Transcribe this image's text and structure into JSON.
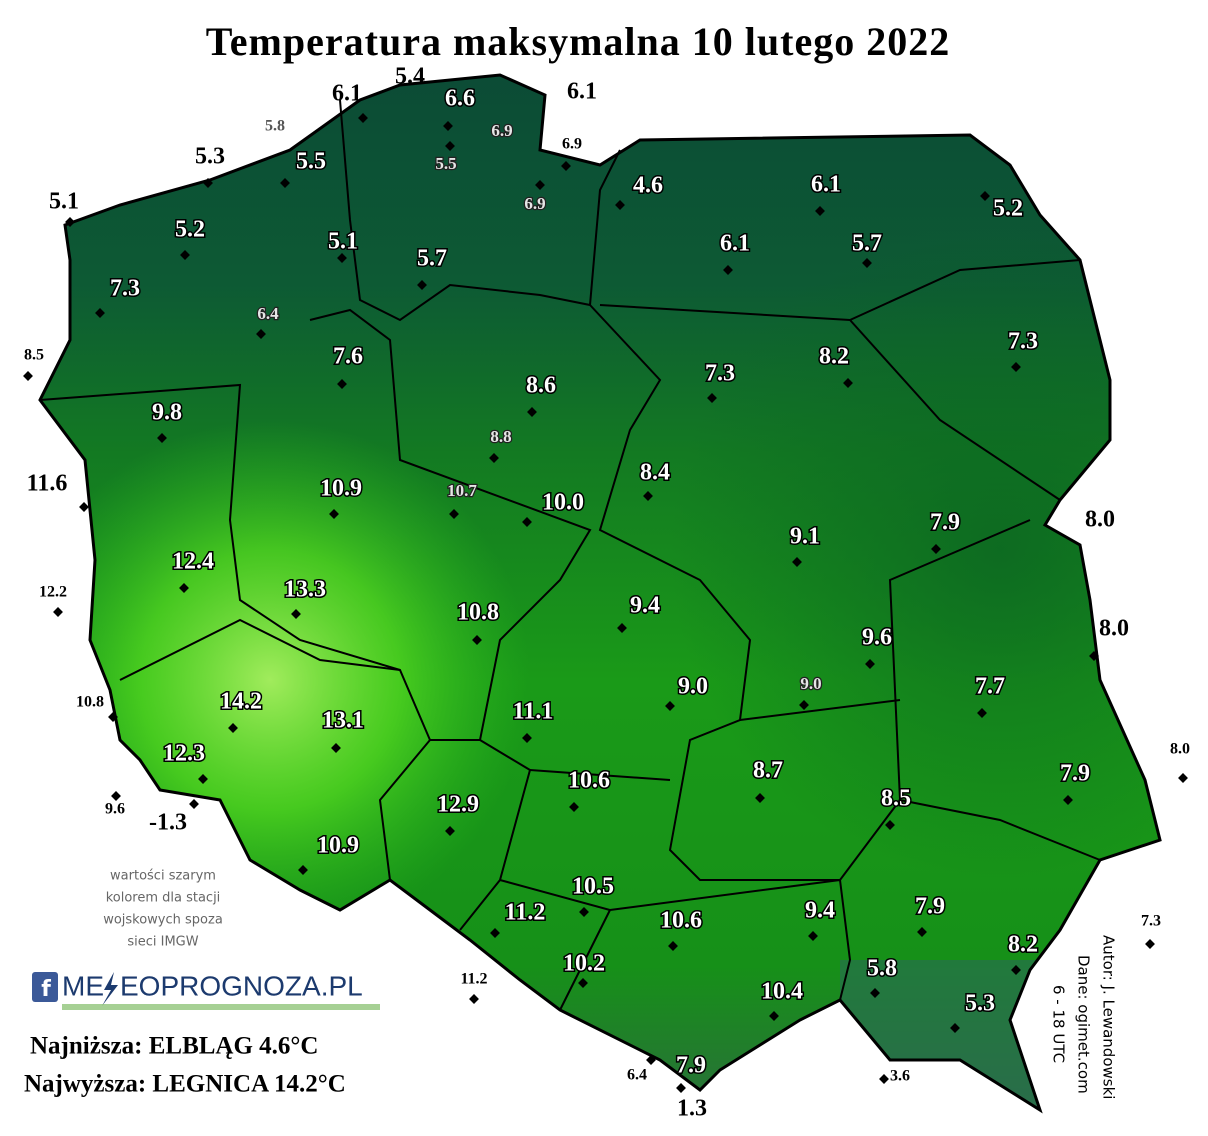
{
  "title": "Temperatura maksymalna 10 lutego 2022",
  "stations": [
    "6.1",
    "5.4",
    "6.6",
    "6.1",
    "5.8",
    "6.9",
    "6.9",
    "5.3",
    "5.5",
    "5.5",
    "6.9",
    "4.6",
    "6.1",
    "5.2",
    "5.1",
    "5.2",
    "5.1",
    "5.7",
    "6.1",
    "5.7",
    "7.3",
    "6.4",
    "8.5",
    "7.6",
    "7.3",
    "8.2",
    "7.3",
    "8.6",
    "9.8",
    "8.8",
    "8.4",
    "11.6",
    "10.9",
    "10.7",
    "10.0",
    "8.0",
    "7.9",
    "9.1",
    "12.4",
    "13.3",
    "12.2",
    "10.8",
    "9.4",
    "8.0",
    "9.6",
    "9.0",
    "9.0",
    "7.7",
    "10.8",
    "14.2",
    "13.1",
    "11.1",
    "12.3",
    "8.7",
    "10.6",
    "7.9",
    "8.0",
    "8.5",
    "9.6",
    "-1.3",
    "12.9",
    "10.9",
    "10.5",
    "9.4",
    "7.9",
    "11.2",
    "10.6",
    "7.3",
    "8.2",
    "10.2",
    "11.2",
    "5.8",
    "10.4",
    "5.3",
    "7.9",
    "6.4",
    "3.6",
    "1.3"
  ],
  "note": [
    "wartości szarym",
    "kolorem dla stacji",
    "wojskowych spoza",
    "sieci IMGW"
  ],
  "logo": [
    "ME",
    "EOPROGNOZA.PL"
  ],
  "summary": [
    "Najniższa: ELBLĄG 4.6°C",
    "Najwyższa:  LEGNICA 14.2°C"
  ],
  "credits": [
    "Autor: J. Lewandowski",
    "Dane: ogimet.com",
    "6 - 18 UTC"
  ]
}
